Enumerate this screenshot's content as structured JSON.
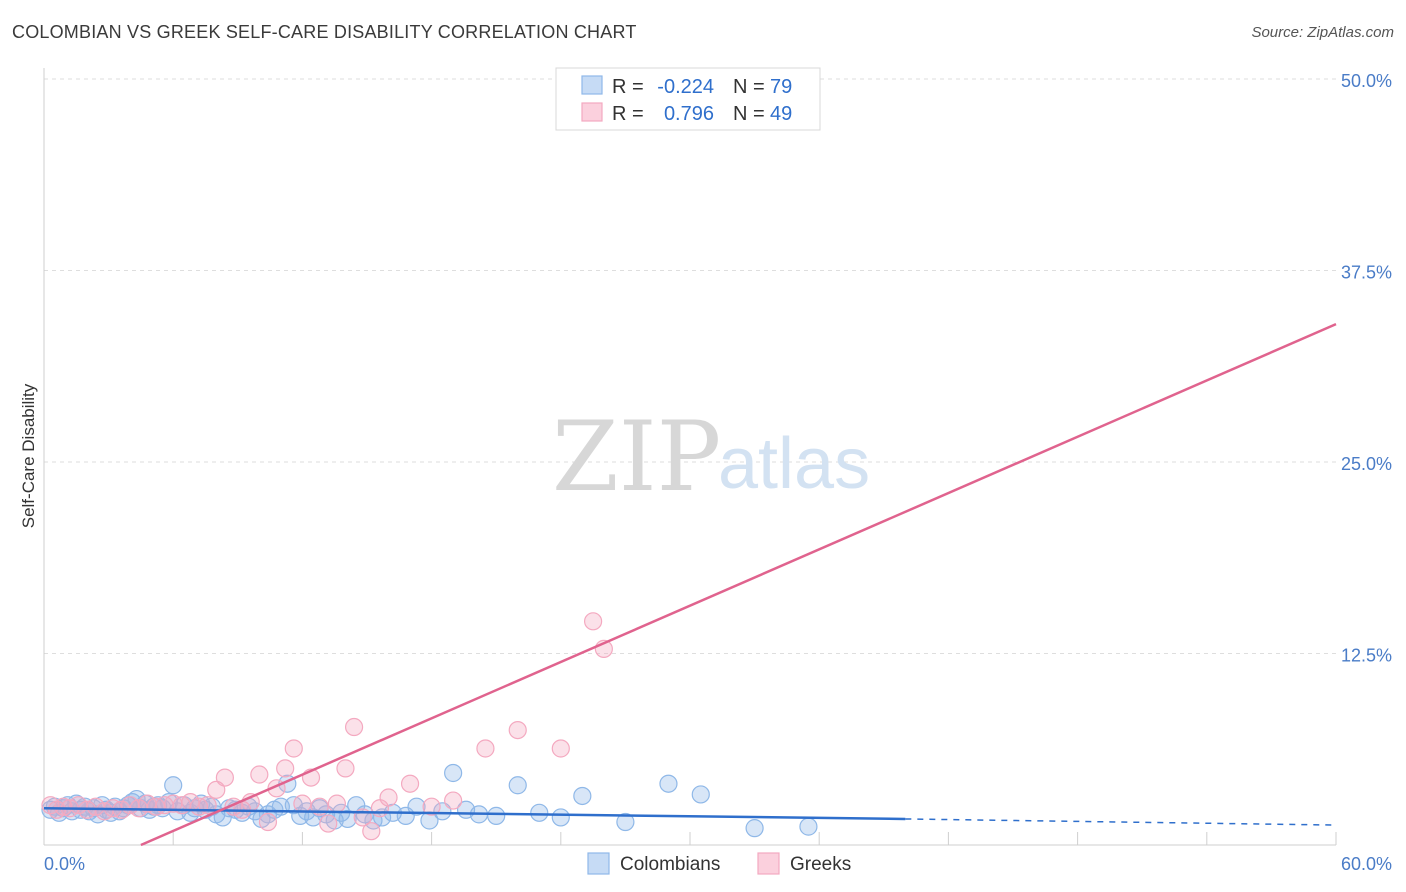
{
  "title": "COLOMBIAN VS GREEK SELF-CARE DISABILITY CORRELATION CHART",
  "source": "Source: ZipAtlas.com",
  "watermark": {
    "zip": "ZIP",
    "atlas": "atlas"
  },
  "chart_data": {
    "type": "scatter",
    "title": "COLOMBIAN VS GREEK SELF-CARE DISABILITY CORRELATION CHART",
    "xlabel": "",
    "ylabel": "Self-Care Disability",
    "xlim": [
      0,
      60
    ],
    "ylim": [
      0,
      50
    ],
    "x_tick_labels": [
      "0.0%",
      "60.0%"
    ],
    "y_ticks": [
      12.5,
      25.0,
      37.5,
      50.0
    ],
    "y_tick_labels": [
      "12.5%",
      "25.0%",
      "37.5%",
      "50.0%"
    ],
    "grid": true,
    "legend_position": "top-center",
    "colors": {
      "colombians": "#8fb8e8",
      "colombians_line": "#2f6fcc",
      "greeks": "#f4a9c0",
      "greeks_line": "#e0638e",
      "tick": "#4a7cc7"
    },
    "stats": [
      {
        "r_label": "R =",
        "r_value": "-0.224",
        "n_label": "N =",
        "n_value": "79"
      },
      {
        "r_label": "R =",
        "r_value": "0.796",
        "n_label": "N =",
        "n_value": "49"
      }
    ],
    "series": [
      {
        "name": "Colombians",
        "trend": {
          "x0": 0,
          "y0": 2.4,
          "x1": 40,
          "y1": 1.7,
          "dash_x1": 60,
          "dash_y1": 1.3
        },
        "points": [
          [
            0.3,
            2.3
          ],
          [
            0.5,
            2.5
          ],
          [
            0.7,
            2.1
          ],
          [
            0.9,
            2.4
          ],
          [
            1.1,
            2.6
          ],
          [
            1.3,
            2.2
          ],
          [
            1.5,
            2.7
          ],
          [
            1.7,
            2.3
          ],
          [
            1.9,
            2.5
          ],
          [
            2.1,
            2.2
          ],
          [
            2.3,
            2.4
          ],
          [
            2.5,
            2.0
          ],
          [
            2.7,
            2.6
          ],
          [
            2.9,
            2.3
          ],
          [
            3.1,
            2.1
          ],
          [
            3.3,
            2.5
          ],
          [
            3.5,
            2.2
          ],
          [
            3.7,
            2.4
          ],
          [
            3.9,
            2.6
          ],
          [
            4.1,
            2.8
          ],
          [
            4.3,
            3.0
          ],
          [
            4.5,
            2.4
          ],
          [
            4.7,
            2.7
          ],
          [
            4.9,
            2.3
          ],
          [
            5.1,
            2.5
          ],
          [
            5.3,
            2.6
          ],
          [
            5.5,
            2.4
          ],
          [
            5.8,
            2.8
          ],
          [
            6.0,
            3.9
          ],
          [
            6.2,
            2.2
          ],
          [
            6.5,
            2.6
          ],
          [
            6.8,
            2.1
          ],
          [
            7.0,
            2.4
          ],
          [
            7.3,
            2.7
          ],
          [
            7.5,
            2.3
          ],
          [
            7.8,
            2.5
          ],
          [
            8.0,
            2.0
          ],
          [
            8.3,
            1.8
          ],
          [
            8.6,
            2.4
          ],
          [
            8.9,
            2.3
          ],
          [
            9.2,
            2.1
          ],
          [
            9.5,
            2.5
          ],
          [
            9.8,
            2.2
          ],
          [
            10.1,
            1.7
          ],
          [
            10.4,
            2.0
          ],
          [
            10.7,
            2.3
          ],
          [
            11.0,
            2.5
          ],
          [
            11.3,
            4.0
          ],
          [
            11.6,
            2.6
          ],
          [
            11.9,
            1.9
          ],
          [
            12.2,
            2.2
          ],
          [
            12.5,
            1.8
          ],
          [
            12.8,
            2.4
          ],
          [
            13.1,
            2.0
          ],
          [
            13.5,
            1.6
          ],
          [
            13.8,
            2.1
          ],
          [
            14.1,
            1.7
          ],
          [
            14.5,
            2.6
          ],
          [
            14.9,
            2.0
          ],
          [
            15.3,
            1.6
          ],
          [
            15.7,
            1.8
          ],
          [
            16.2,
            2.1
          ],
          [
            16.8,
            1.9
          ],
          [
            17.3,
            2.5
          ],
          [
            17.9,
            1.6
          ],
          [
            18.5,
            2.2
          ],
          [
            19.0,
            4.7
          ],
          [
            19.6,
            2.3
          ],
          [
            20.2,
            2.0
          ],
          [
            21.0,
            1.9
          ],
          [
            22.0,
            3.9
          ],
          [
            23.0,
            2.1
          ],
          [
            24.0,
            1.8
          ],
          [
            25.0,
            3.2
          ],
          [
            27.0,
            1.5
          ],
          [
            29.0,
            4.0
          ],
          [
            30.5,
            3.3
          ],
          [
            33.0,
            1.1
          ],
          [
            35.5,
            1.2
          ]
        ]
      },
      {
        "name": "Greeks",
        "trend": {
          "x0": 4.5,
          "y0": 0,
          "x1": 60,
          "y1": 34
        },
        "points": [
          [
            0.3,
            2.6
          ],
          [
            0.6,
            2.3
          ],
          [
            0.9,
            2.5
          ],
          [
            1.2,
            2.4
          ],
          [
            1.6,
            2.6
          ],
          [
            2.0,
            2.3
          ],
          [
            2.4,
            2.5
          ],
          [
            2.8,
            2.2
          ],
          [
            3.2,
            2.4
          ],
          [
            3.6,
            2.3
          ],
          [
            4.0,
            2.6
          ],
          [
            4.4,
            2.4
          ],
          [
            4.8,
            2.7
          ],
          [
            5.2,
            2.5
          ],
          [
            5.6,
            2.6
          ],
          [
            6.0,
            2.7
          ],
          [
            6.4,
            2.6
          ],
          [
            6.8,
            2.8
          ],
          [
            7.2,
            2.5
          ],
          [
            7.6,
            2.6
          ],
          [
            8.0,
            3.6
          ],
          [
            8.4,
            4.4
          ],
          [
            8.8,
            2.5
          ],
          [
            9.2,
            2.3
          ],
          [
            9.6,
            2.8
          ],
          [
            10.0,
            4.6
          ],
          [
            10.4,
            1.5
          ],
          [
            10.8,
            3.7
          ],
          [
            11.2,
            5.0
          ],
          [
            11.6,
            6.3
          ],
          [
            12.0,
            2.7
          ],
          [
            12.4,
            4.4
          ],
          [
            12.8,
            2.5
          ],
          [
            13.2,
            1.4
          ],
          [
            13.6,
            2.7
          ],
          [
            14.0,
            5.0
          ],
          [
            14.4,
            7.7
          ],
          [
            14.8,
            1.8
          ],
          [
            15.2,
            0.9
          ],
          [
            15.6,
            2.4
          ],
          [
            16.0,
            3.1
          ],
          [
            17.0,
            4.0
          ],
          [
            18.0,
            2.5
          ],
          [
            19.0,
            2.9
          ],
          [
            20.5,
            6.3
          ],
          [
            22.0,
            7.5
          ],
          [
            24.0,
            6.3
          ],
          [
            25.5,
            14.6
          ],
          [
            26.0,
            12.8
          ]
        ]
      }
    ]
  },
  "legend": {
    "colombians": "Colombians",
    "greeks": "Greeks"
  }
}
